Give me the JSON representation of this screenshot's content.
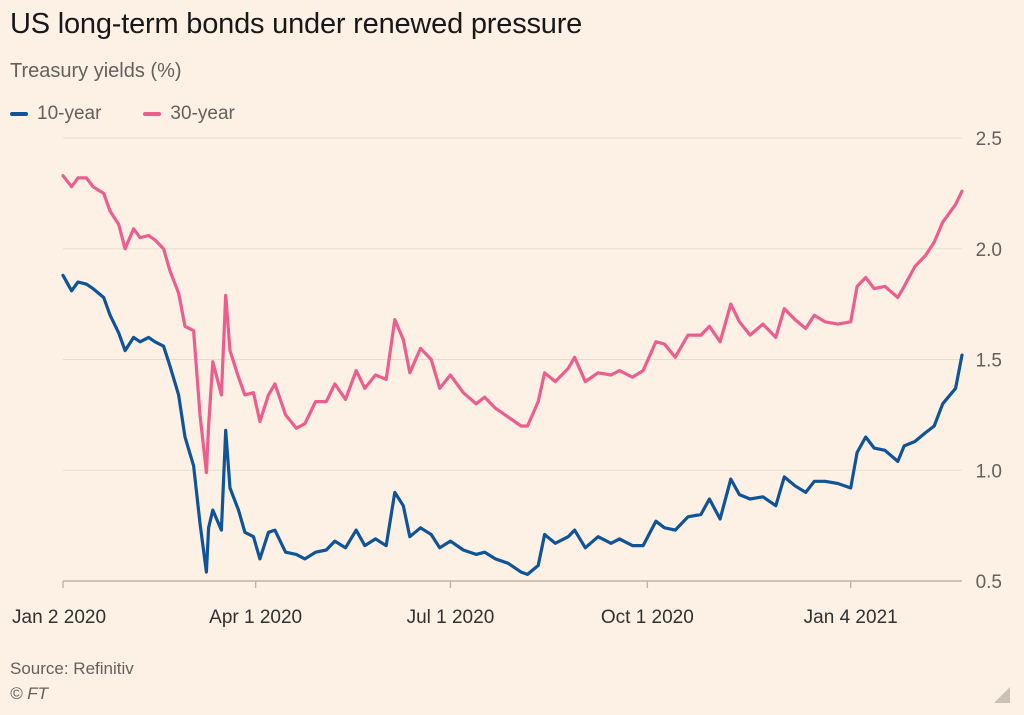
{
  "header": {
    "title": "US long-term bonds under renewed pressure",
    "subtitle": "Treasury yields (%)"
  },
  "footer": {
    "source": "Source: Refinitiv",
    "copyright": "© FT"
  },
  "colors": {
    "background": "#fdf1e6",
    "gridline": "#e9dccf",
    "series_10y": "#0f5499",
    "series_30y": "#eb5e8d"
  },
  "chart_data": {
    "type": "line",
    "title": "US long-term bonds under renewed pressure",
    "subtitle": "Treasury yields (%)",
    "xlabel": "",
    "ylabel": "",
    "x_range": [
      "2020-01-02",
      "2021-02-25"
    ],
    "ylim": [
      0.5,
      2.5
    ],
    "y_ticks": [
      0.5,
      1.0,
      1.5,
      2.0,
      2.5
    ],
    "y_tick_labels": [
      "0.5",
      "1.0",
      "1.5",
      "2.0",
      "2.5"
    ],
    "y_axis_side": "right",
    "x_ticks": [
      {
        "date": "2020-01-02",
        "label": "Jan 2 2020"
      },
      {
        "date": "2020-04-01",
        "label": "Apr 1 2020"
      },
      {
        "date": "2020-07-01",
        "label": "Jul 1 2020"
      },
      {
        "date": "2020-10-01",
        "label": "Oct 1 2020"
      },
      {
        "date": "2021-01-04",
        "label": "Jan 4 2021"
      }
    ],
    "grid": true,
    "legend_position": "top-left",
    "series": [
      {
        "name": "10-year",
        "color": "#0f5499",
        "points": [
          [
            "2020-01-02",
            1.88
          ],
          [
            "2020-01-06",
            1.81
          ],
          [
            "2020-01-09",
            1.85
          ],
          [
            "2020-01-13",
            1.84
          ],
          [
            "2020-01-16",
            1.82
          ],
          [
            "2020-01-21",
            1.78
          ],
          [
            "2020-01-24",
            1.7
          ],
          [
            "2020-01-28",
            1.62
          ],
          [
            "2020-01-31",
            1.54
          ],
          [
            "2020-02-04",
            1.6
          ],
          [
            "2020-02-07",
            1.58
          ],
          [
            "2020-02-11",
            1.6
          ],
          [
            "2020-02-14",
            1.58
          ],
          [
            "2020-02-18",
            1.56
          ],
          [
            "2020-02-21",
            1.47
          ],
          [
            "2020-02-25",
            1.34
          ],
          [
            "2020-02-28",
            1.15
          ],
          [
            "2020-03-03",
            1.02
          ],
          [
            "2020-03-06",
            0.76
          ],
          [
            "2020-03-09",
            0.54
          ],
          [
            "2020-03-10",
            0.74
          ],
          [
            "2020-03-12",
            0.82
          ],
          [
            "2020-03-16",
            0.73
          ],
          [
            "2020-03-18",
            1.18
          ],
          [
            "2020-03-20",
            0.92
          ],
          [
            "2020-03-24",
            0.82
          ],
          [
            "2020-03-27",
            0.72
          ],
          [
            "2020-03-31",
            0.7
          ],
          [
            "2020-04-03",
            0.6
          ],
          [
            "2020-04-07",
            0.72
          ],
          [
            "2020-04-10",
            0.73
          ],
          [
            "2020-04-15",
            0.63
          ],
          [
            "2020-04-20",
            0.62
          ],
          [
            "2020-04-24",
            0.6
          ],
          [
            "2020-04-29",
            0.63
          ],
          [
            "2020-05-04",
            0.64
          ],
          [
            "2020-05-08",
            0.68
          ],
          [
            "2020-05-13",
            0.65
          ],
          [
            "2020-05-18",
            0.73
          ],
          [
            "2020-05-22",
            0.66
          ],
          [
            "2020-05-27",
            0.69
          ],
          [
            "2020-06-01",
            0.66
          ],
          [
            "2020-06-05",
            0.9
          ],
          [
            "2020-06-09",
            0.84
          ],
          [
            "2020-06-12",
            0.7
          ],
          [
            "2020-06-17",
            0.74
          ],
          [
            "2020-06-22",
            0.71
          ],
          [
            "2020-06-26",
            0.65
          ],
          [
            "2020-07-01",
            0.68
          ],
          [
            "2020-07-07",
            0.64
          ],
          [
            "2020-07-13",
            0.62
          ],
          [
            "2020-07-17",
            0.63
          ],
          [
            "2020-07-22",
            0.6
          ],
          [
            "2020-07-28",
            0.58
          ],
          [
            "2020-08-03",
            0.54
          ],
          [
            "2020-08-06",
            0.53
          ],
          [
            "2020-08-11",
            0.57
          ],
          [
            "2020-08-14",
            0.71
          ],
          [
            "2020-08-19",
            0.67
          ],
          [
            "2020-08-25",
            0.7
          ],
          [
            "2020-08-28",
            0.73
          ],
          [
            "2020-09-02",
            0.65
          ],
          [
            "2020-09-08",
            0.7
          ],
          [
            "2020-09-14",
            0.67
          ],
          [
            "2020-09-18",
            0.69
          ],
          [
            "2020-09-24",
            0.66
          ],
          [
            "2020-09-29",
            0.66
          ],
          [
            "2020-10-05",
            0.77
          ],
          [
            "2020-10-09",
            0.74
          ],
          [
            "2020-10-14",
            0.73
          ],
          [
            "2020-10-20",
            0.79
          ],
          [
            "2020-10-26",
            0.8
          ],
          [
            "2020-10-30",
            0.87
          ],
          [
            "2020-11-04",
            0.78
          ],
          [
            "2020-11-09",
            0.96
          ],
          [
            "2020-11-13",
            0.89
          ],
          [
            "2020-11-18",
            0.87
          ],
          [
            "2020-11-24",
            0.88
          ],
          [
            "2020-11-30",
            0.84
          ],
          [
            "2020-12-04",
            0.97
          ],
          [
            "2020-12-09",
            0.93
          ],
          [
            "2020-12-14",
            0.9
          ],
          [
            "2020-12-18",
            0.95
          ],
          [
            "2020-12-23",
            0.95
          ],
          [
            "2020-12-29",
            0.94
          ],
          [
            "2021-01-04",
            0.92
          ],
          [
            "2021-01-07",
            1.08
          ],
          [
            "2021-01-11",
            1.15
          ],
          [
            "2021-01-15",
            1.1
          ],
          [
            "2021-01-20",
            1.09
          ],
          [
            "2021-01-26",
            1.04
          ],
          [
            "2021-01-29",
            1.11
          ],
          [
            "2021-02-03",
            1.13
          ],
          [
            "2021-02-08",
            1.17
          ],
          [
            "2021-02-12",
            1.2
          ],
          [
            "2021-02-16",
            1.3
          ],
          [
            "2021-02-22",
            1.37
          ],
          [
            "2021-02-25",
            1.52
          ]
        ]
      },
      {
        "name": "30-year",
        "color": "#eb5e8d",
        "points": [
          [
            "2020-01-02",
            2.33
          ],
          [
            "2020-01-06",
            2.28
          ],
          [
            "2020-01-09",
            2.32
          ],
          [
            "2020-01-13",
            2.32
          ],
          [
            "2020-01-16",
            2.28
          ],
          [
            "2020-01-21",
            2.25
          ],
          [
            "2020-01-24",
            2.17
          ],
          [
            "2020-01-28",
            2.11
          ],
          [
            "2020-01-31",
            2.0
          ],
          [
            "2020-02-04",
            2.09
          ],
          [
            "2020-02-07",
            2.05
          ],
          [
            "2020-02-11",
            2.06
          ],
          [
            "2020-02-14",
            2.04
          ],
          [
            "2020-02-18",
            2.0
          ],
          [
            "2020-02-21",
            1.9
          ],
          [
            "2020-02-25",
            1.8
          ],
          [
            "2020-02-28",
            1.65
          ],
          [
            "2020-03-03",
            1.63
          ],
          [
            "2020-03-06",
            1.25
          ],
          [
            "2020-03-09",
            0.99
          ],
          [
            "2020-03-10",
            1.2
          ],
          [
            "2020-03-12",
            1.49
          ],
          [
            "2020-03-16",
            1.34
          ],
          [
            "2020-03-18",
            1.79
          ],
          [
            "2020-03-20",
            1.54
          ],
          [
            "2020-03-24",
            1.42
          ],
          [
            "2020-03-27",
            1.34
          ],
          [
            "2020-03-31",
            1.35
          ],
          [
            "2020-04-03",
            1.22
          ],
          [
            "2020-04-07",
            1.34
          ],
          [
            "2020-04-10",
            1.39
          ],
          [
            "2020-04-15",
            1.25
          ],
          [
            "2020-04-20",
            1.19
          ],
          [
            "2020-04-24",
            1.21
          ],
          [
            "2020-04-29",
            1.31
          ],
          [
            "2020-05-04",
            1.31
          ],
          [
            "2020-05-08",
            1.39
          ],
          [
            "2020-05-13",
            1.32
          ],
          [
            "2020-05-18",
            1.45
          ],
          [
            "2020-05-22",
            1.37
          ],
          [
            "2020-05-27",
            1.43
          ],
          [
            "2020-06-01",
            1.41
          ],
          [
            "2020-06-05",
            1.68
          ],
          [
            "2020-06-09",
            1.59
          ],
          [
            "2020-06-12",
            1.44
          ],
          [
            "2020-06-17",
            1.55
          ],
          [
            "2020-06-22",
            1.5
          ],
          [
            "2020-06-26",
            1.37
          ],
          [
            "2020-07-01",
            1.43
          ],
          [
            "2020-07-07",
            1.35
          ],
          [
            "2020-07-13",
            1.3
          ],
          [
            "2020-07-17",
            1.33
          ],
          [
            "2020-07-22",
            1.28
          ],
          [
            "2020-07-28",
            1.24
          ],
          [
            "2020-08-03",
            1.2
          ],
          [
            "2020-08-06",
            1.2
          ],
          [
            "2020-08-11",
            1.31
          ],
          [
            "2020-08-14",
            1.44
          ],
          [
            "2020-08-19",
            1.4
          ],
          [
            "2020-08-25",
            1.46
          ],
          [
            "2020-08-28",
            1.51
          ],
          [
            "2020-09-02",
            1.4
          ],
          [
            "2020-09-08",
            1.44
          ],
          [
            "2020-09-14",
            1.43
          ],
          [
            "2020-09-18",
            1.45
          ],
          [
            "2020-09-24",
            1.42
          ],
          [
            "2020-09-29",
            1.45
          ],
          [
            "2020-10-05",
            1.58
          ],
          [
            "2020-10-09",
            1.57
          ],
          [
            "2020-10-14",
            1.51
          ],
          [
            "2020-10-20",
            1.61
          ],
          [
            "2020-10-26",
            1.61
          ],
          [
            "2020-10-30",
            1.65
          ],
          [
            "2020-11-04",
            1.58
          ],
          [
            "2020-11-09",
            1.75
          ],
          [
            "2020-11-13",
            1.67
          ],
          [
            "2020-11-18",
            1.61
          ],
          [
            "2020-11-24",
            1.66
          ],
          [
            "2020-11-30",
            1.6
          ],
          [
            "2020-12-04",
            1.73
          ],
          [
            "2020-12-09",
            1.68
          ],
          [
            "2020-12-14",
            1.64
          ],
          [
            "2020-12-18",
            1.7
          ],
          [
            "2020-12-23",
            1.67
          ],
          [
            "2020-12-29",
            1.66
          ],
          [
            "2021-01-04",
            1.67
          ],
          [
            "2021-01-07",
            1.83
          ],
          [
            "2021-01-11",
            1.87
          ],
          [
            "2021-01-15",
            1.82
          ],
          [
            "2021-01-20",
            1.83
          ],
          [
            "2021-01-26",
            1.78
          ],
          [
            "2021-01-29",
            1.83
          ],
          [
            "2021-02-03",
            1.92
          ],
          [
            "2021-02-08",
            1.97
          ],
          [
            "2021-02-12",
            2.03
          ],
          [
            "2021-02-16",
            2.12
          ],
          [
            "2021-02-22",
            2.2
          ],
          [
            "2021-02-25",
            2.26
          ]
        ]
      }
    ]
  }
}
